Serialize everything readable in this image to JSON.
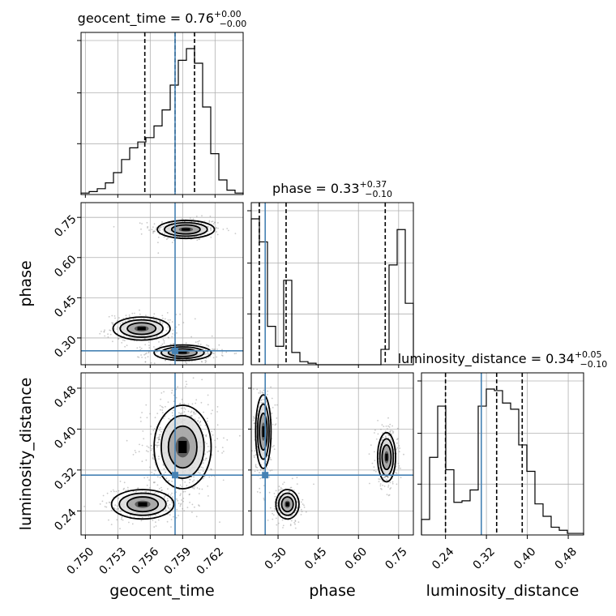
{
  "chart_data": {
    "type": "corner",
    "parameters": [
      {
        "name": "geocent_time",
        "xlabel": "geocent_time",
        "ticks": [
          0.75,
          0.753,
          0.756,
          0.759,
          0.762
        ],
        "tick_labels": [
          "0.750",
          "0.753",
          "0.756",
          "0.759",
          "0.762"
        ],
        "range": [
          0.7496,
          0.7646
        ],
        "truth": 0.7583,
        "quantiles": [
          0.7555,
          0.7583,
          0.7601
        ],
        "title_base": "geocent_time = 0.76",
        "title_up": "+0.00",
        "title_down": "−0.00"
      },
      {
        "name": "phase",
        "xlabel": "phase",
        "ylabel": "phase",
        "ticks": [
          0.3,
          0.45,
          0.6,
          0.75
        ],
        "tick_labels": [
          "0.30",
          "0.45",
          "0.60",
          "0.75"
        ],
        "range": [
          0.2,
          0.805
        ],
        "truth": 0.252,
        "quantiles": [
          0.23,
          0.33,
          0.7
        ],
        "title_base": "phase = 0.33",
        "title_up": "+0.37",
        "title_down": "−0.10"
      },
      {
        "name": "luminosity_distance",
        "xlabel": "luminosity_distance",
        "ylabel": "luminosity_distance",
        "ticks": [
          0.24,
          0.32,
          0.4,
          0.48
        ],
        "tick_labels": [
          "0.24",
          "0.32",
          "0.40",
          "0.48"
        ],
        "range": [
          0.193,
          0.51
        ],
        "truth": 0.31,
        "quantiles": [
          0.24,
          0.34,
          0.39
        ],
        "title_base": "luminosity_distance = 0.34",
        "title_up": "+0.05",
        "title_down": "−0.10"
      }
    ],
    "histograms": [
      {
        "param": "geocent_time",
        "edges_range": [
          0.7496,
          0.7646
        ],
        "bins": 20,
        "counts": [
          1,
          2,
          4,
          8,
          15,
          24,
          32,
          36,
          39,
          47,
          58,
          75,
          92,
          100,
          90,
          60,
          28,
          10,
          3,
          1
        ]
      },
      {
        "param": "phase",
        "edges_range": [
          0.2,
          0.805
        ],
        "bins": 20,
        "counts": [
          95,
          80,
          25,
          12,
          55,
          8,
          2,
          1,
          0,
          0,
          0,
          0,
          0,
          0,
          0,
          0,
          10,
          65,
          88,
          40
        ]
      },
      {
        "param": "luminosity_distance",
        "edges_range": [
          0.193,
          0.51
        ],
        "bins": 20,
        "counts": [
          10,
          50,
          83,
          42,
          21,
          22,
          29,
          83,
          94,
          93,
          85,
          81,
          58,
          41,
          20,
          12,
          5,
          3,
          1,
          1
        ]
      }
    ],
    "clusters": [
      {
        "pair": [
          "geocent_time",
          "phase"
        ],
        "mean": [
          0.7593,
          0.705
        ],
        "sd": [
          0.0011,
          0.014
        ],
        "weight": 0.34
      },
      {
        "pair": [
          "geocent_time",
          "phase"
        ],
        "mean": [
          0.7552,
          0.335
        ],
        "sd": [
          0.0011,
          0.018
        ],
        "weight": 0.28
      },
      {
        "pair": [
          "geocent_time",
          "phase"
        ],
        "mean": [
          0.759,
          0.245
        ],
        "sd": [
          0.0011,
          0.012
        ],
        "weight": 0.38
      },
      {
        "pair": [
          "geocent_time",
          "luminosity_distance"
        ],
        "mean": [
          0.759,
          0.365
        ],
        "sd": [
          0.0011,
          0.034
        ],
        "weight": 0.7
      },
      {
        "pair": [
          "geocent_time",
          "luminosity_distance"
        ],
        "mean": [
          0.7553,
          0.253
        ],
        "sd": [
          0.0012,
          0.012
        ],
        "weight": 0.3
      },
      {
        "pair": [
          "phase",
          "luminosity_distance"
        ],
        "mean": [
          0.245,
          0.395
        ],
        "sd": [
          0.012,
          0.03
        ],
        "weight": 0.32
      },
      {
        "pair": [
          "phase",
          "luminosity_distance"
        ],
        "mean": [
          0.335,
          0.253
        ],
        "sd": [
          0.018,
          0.012
        ],
        "weight": 0.3
      },
      {
        "pair": [
          "phase",
          "luminosity_distance"
        ],
        "mean": [
          0.705,
          0.345
        ],
        "sd": [
          0.014,
          0.02
        ],
        "weight": 0.38
      }
    ],
    "grid": true,
    "truth_color": "#4682b4",
    "line_color": "#000000"
  }
}
